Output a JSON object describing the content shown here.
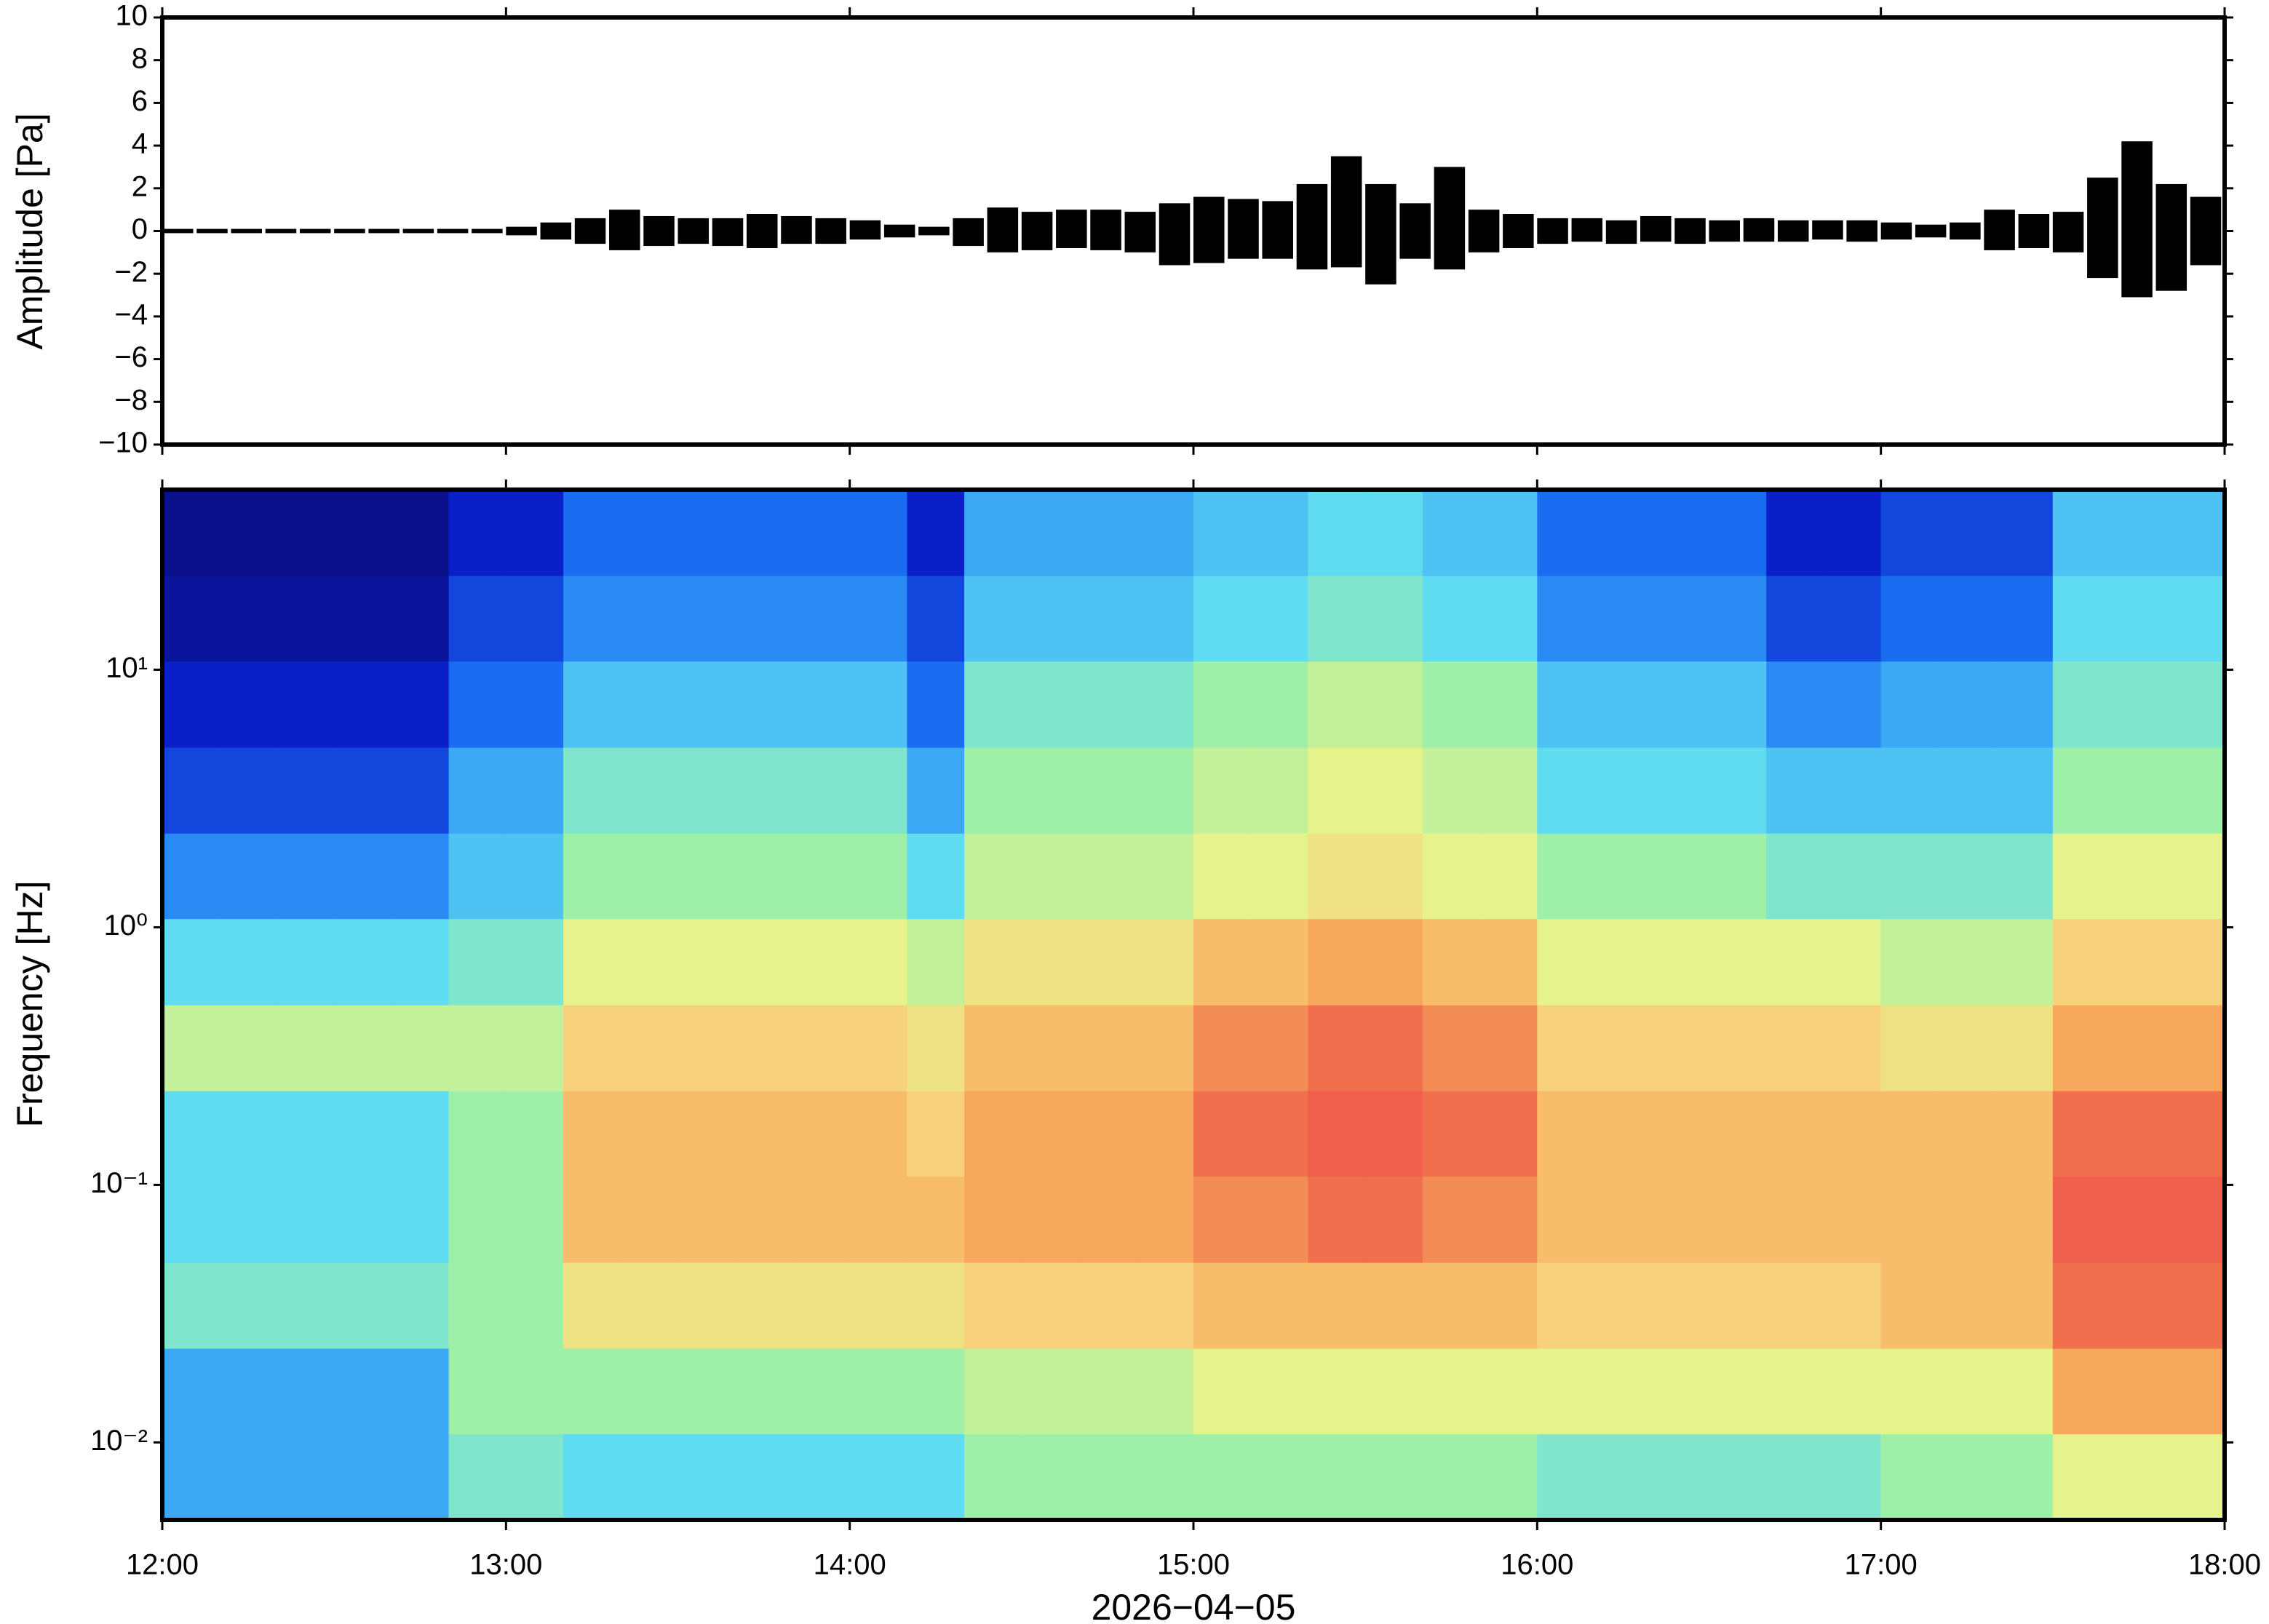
{
  "chart_data": [
    {
      "type": "waveform",
      "ylabel": "Amplitude [Pa]",
      "color": "#000000",
      "xlim": [
        12,
        18
      ],
      "ylim": [
        -10,
        10
      ],
      "yticks": [
        {
          "value": -10,
          "label": "−10"
        },
        {
          "value": -8,
          "label": "−8"
        },
        {
          "value": -6,
          "label": "−6"
        },
        {
          "value": -4,
          "label": "−4"
        },
        {
          "value": -2,
          "label": "−2"
        },
        0,
        2,
        4,
        6,
        8,
        10
      ],
      "x": [
        12.05,
        12.15,
        12.25,
        12.35,
        12.45,
        12.55,
        12.65,
        12.75,
        12.85,
        12.95,
        13.05,
        13.15,
        13.25,
        13.35,
        13.45,
        13.55,
        13.65,
        13.75,
        13.85,
        13.95,
        14.05,
        14.15,
        14.25,
        14.35,
        14.45,
        14.55,
        14.65,
        14.75,
        14.85,
        14.95,
        15.05,
        15.15,
        15.25,
        15.35,
        15.45,
        15.55,
        15.65,
        15.75,
        15.85,
        15.95,
        16.05,
        16.15,
        16.25,
        16.35,
        16.45,
        16.55,
        16.65,
        16.75,
        16.85,
        16.95,
        17.05,
        17.15,
        17.25,
        17.35,
        17.45,
        17.55,
        17.65,
        17.75,
        17.85,
        17.95
      ],
      "max": [
        0.1,
        0.1,
        0.1,
        0.1,
        0.1,
        0.1,
        0.1,
        0.1,
        0.1,
        0.1,
        0.2,
        0.4,
        0.6,
        1.0,
        0.7,
        0.6,
        0.6,
        0.8,
        0.7,
        0.6,
        0.5,
        0.3,
        0.2,
        0.6,
        1.1,
        0.9,
        1.0,
        1.0,
        0.9,
        1.3,
        1.6,
        1.5,
        1.4,
        2.2,
        3.5,
        2.2,
        1.3,
        3.0,
        1.0,
        0.8,
        0.6,
        0.6,
        0.5,
        0.7,
        0.6,
        0.5,
        0.6,
        0.5,
        0.5,
        0.5,
        0.4,
        0.3,
        0.4,
        1.0,
        0.8,
        0.9,
        2.5,
        4.2,
        2.2,
        1.6
      ],
      "min": [
        -0.1,
        -0.1,
        -0.1,
        -0.1,
        -0.1,
        -0.1,
        -0.1,
        -0.1,
        -0.1,
        -0.1,
        -0.2,
        -0.4,
        -0.6,
        -0.9,
        -0.7,
        -0.6,
        -0.7,
        -0.8,
        -0.6,
        -0.6,
        -0.4,
        -0.3,
        -0.2,
        -0.7,
        -1.0,
        -0.9,
        -0.8,
        -0.9,
        -1.0,
        -1.6,
        -1.5,
        -1.3,
        -1.3,
        -1.8,
        -1.7,
        -2.5,
        -1.3,
        -1.8,
        -1.0,
        -0.8,
        -0.6,
        -0.5,
        -0.6,
        -0.5,
        -0.6,
        -0.5,
        -0.5,
        -0.5,
        -0.4,
        -0.5,
        -0.4,
        -0.3,
        -0.4,
        -0.9,
        -0.8,
        -1.0,
        -2.2,
        -3.1,
        -2.8,
        -1.6
      ]
    },
    {
      "type": "heatmap",
      "ylabel": "Frequency [Hz]",
      "xlabel": "2026−04−05",
      "log_y": true,
      "xlim": [
        12,
        18
      ],
      "ylim": [
        0.005,
        50
      ],
      "xticks": [
        {
          "value": 12,
          "label": "12:00"
        },
        {
          "value": 13,
          "label": "13:00"
        },
        {
          "value": 14,
          "label": "14:00"
        },
        {
          "value": 15,
          "label": "15:00"
        },
        {
          "value": 16,
          "label": "16:00"
        },
        {
          "value": 17,
          "label": "17:00"
        },
        {
          "value": 18,
          "label": "18:00"
        }
      ],
      "yticks": [
        {
          "value": 0.01,
          "label": "10⁻²"
        },
        {
          "value": 0.1,
          "label": "10⁻¹"
        },
        {
          "value": 1,
          "label": "10⁰"
        },
        {
          "value": 10,
          "label": "10¹"
        }
      ],
      "x_bins": [
        12,
        12.1667,
        12.3333,
        12.5,
        12.6667,
        12.8333,
        13,
        13.1667,
        13.3333,
        13.5,
        13.6667,
        13.8333,
        14,
        14.1667,
        14.3333,
        14.5,
        14.6667,
        14.8333,
        15,
        15.1667,
        15.3333,
        15.5,
        15.6667,
        15.8333,
        16,
        16.1667,
        16.3333,
        16.5,
        16.6667,
        16.8333,
        17,
        17.1667,
        17.3333,
        17.5,
        17.6667,
        17.8333,
        18
      ],
      "y_bins": [
        0.005,
        0.0108,
        0.0232,
        0.05,
        0.108,
        0.232,
        0.5,
        1.08,
        2.32,
        5,
        10.8,
        23.2,
        50
      ],
      "zlim": [
        0,
        10
      ],
      "colormap": [
        "#0a0a6e",
        "#0a1fc8",
        "#1a6cf0",
        "#3aa8f5",
        "#5fdcf0",
        "#9ef0a8",
        "#e6f28a",
        "#f8d27a",
        "#f7a85c",
        "#f0704e",
        "#f04e4e"
      ],
      "z": [
        [
          3,
          3,
          3,
          3,
          3,
          4.5,
          4.5,
          4,
          4,
          4,
          4,
          4,
          4,
          4,
          5,
          5,
          5,
          5,
          5,
          5,
          5,
          5,
          5,
          5,
          4.5,
          4.5,
          4.5,
          4.5,
          4.5,
          4.5,
          5,
          5,
          5,
          6,
          6,
          6
        ],
        [
          3,
          3,
          3,
          3,
          3,
          5,
          5,
          5,
          5,
          5,
          5,
          5,
          5,
          5,
          5.5,
          5.5,
          5.5,
          5.5,
          6,
          6,
          6,
          6,
          6,
          6,
          6,
          6,
          6,
          6,
          6,
          6,
          6,
          6,
          6,
          8,
          8,
          8
        ],
        [
          4.5,
          4.5,
          4.5,
          4.5,
          4.5,
          5,
          5,
          6.5,
          6.5,
          6.5,
          6.5,
          6.5,
          6.5,
          6.5,
          7,
          7,
          7,
          7,
          7.5,
          7.5,
          7.5,
          7.5,
          7.5,
          7.5,
          7,
          7,
          7,
          7,
          7,
          7,
          7.5,
          7.5,
          7.5,
          9,
          9,
          9
        ],
        [
          4,
          4,
          4,
          4,
          4,
          5,
          5,
          7.5,
          7.5,
          7.5,
          7.5,
          7.5,
          7.5,
          7.5,
          8,
          8,
          8,
          8,
          8.5,
          8.5,
          9,
          9,
          8.5,
          8.5,
          7.5,
          7.5,
          7.5,
          7.5,
          7.5,
          7.5,
          7.5,
          7.5,
          7.5,
          9.5,
          9.5,
          9.5
        ],
        [
          4,
          4,
          4,
          4,
          4,
          5,
          5,
          7.5,
          7.5,
          7.5,
          7.5,
          7.5,
          7.5,
          7,
          8,
          8,
          8,
          8,
          9,
          9,
          9.5,
          9.5,
          9,
          9,
          7.5,
          7.5,
          7.5,
          7.5,
          7.5,
          7.5,
          7.5,
          7.5,
          7.5,
          9,
          9,
          9
        ],
        [
          5.5,
          5.5,
          5.5,
          5.5,
          5.5,
          5.5,
          5.5,
          7,
          7,
          7,
          7,
          7,
          7,
          6.5,
          7.5,
          7.5,
          7.5,
          7.5,
          8.5,
          8.5,
          9,
          9,
          8.5,
          8.5,
          7,
          7,
          7,
          7,
          7,
          7,
          6.5,
          6.5,
          6.5,
          8,
          8,
          8
        ],
        [
          4,
          4,
          4,
          4,
          4,
          4.5,
          4.5,
          6,
          6,
          6,
          6,
          6,
          6,
          5.5,
          6.5,
          6.5,
          6.5,
          6.5,
          7.5,
          7.5,
          8,
          8,
          7.5,
          7.5,
          6,
          6,
          6,
          6,
          6,
          6,
          5.5,
          5.5,
          5.5,
          7,
          7,
          7
        ],
        [
          2.5,
          2.5,
          2.5,
          2.5,
          2.5,
          3.5,
          3.5,
          5,
          5,
          5,
          5,
          5,
          5,
          4,
          5.5,
          5.5,
          5.5,
          5.5,
          6,
          6,
          6.5,
          6.5,
          6,
          6,
          5,
          5,
          5,
          5,
          4.5,
          4.5,
          4.5,
          4.5,
          4.5,
          6,
          6,
          6
        ],
        [
          1.5,
          1.5,
          1.5,
          1.5,
          1.5,
          3,
          3,
          4.5,
          4.5,
          4.5,
          4.5,
          4.5,
          4.5,
          3,
          5,
          5,
          5,
          5,
          5.5,
          5.5,
          6,
          6,
          5.5,
          5.5,
          4,
          4,
          4,
          4,
          3.5,
          3.5,
          3.5,
          3.5,
          3.5,
          5,
          5,
          5
        ],
        [
          1,
          1,
          1,
          1,
          1,
          2,
          2,
          3.5,
          3.5,
          3.5,
          3.5,
          3.5,
          3.5,
          2,
          4.5,
          4.5,
          4.5,
          4.5,
          5,
          5,
          5.5,
          5.5,
          5,
          5,
          3.5,
          3.5,
          3.5,
          3.5,
          2.5,
          2.5,
          3,
          3,
          3,
          4.5,
          4.5,
          4.5
        ],
        [
          0.5,
          0.5,
          0.5,
          0.5,
          0.5,
          1.5,
          1.5,
          2.5,
          2.5,
          2.5,
          2.5,
          2.5,
          2.5,
          1.5,
          3.5,
          3.5,
          3.5,
          3.5,
          4,
          4,
          4.5,
          4.5,
          4,
          4,
          2.5,
          2.5,
          2.5,
          2.5,
          1.5,
          1.5,
          2,
          2,
          2,
          4,
          4,
          4
        ],
        [
          0.3,
          0.3,
          0.3,
          0.3,
          0.3,
          1,
          1,
          2,
          2,
          2,
          2,
          2,
          2,
          1,
          3,
          3,
          3,
          3,
          3.5,
          3.5,
          4,
          4,
          3.5,
          3.5,
          2,
          2,
          2,
          2,
          1,
          1,
          1.5,
          1.5,
          1.5,
          3.5,
          3.5,
          3.5
        ]
      ]
    }
  ]
}
